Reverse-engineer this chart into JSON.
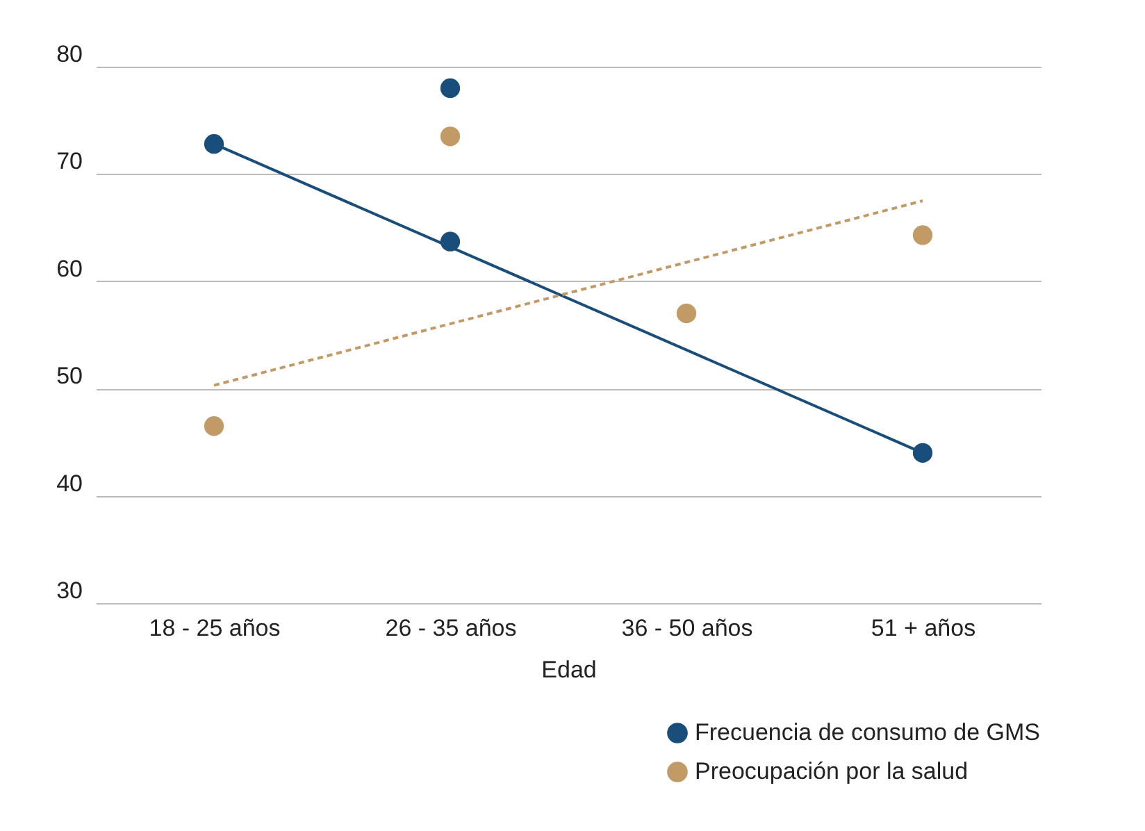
{
  "chart_data": {
    "type": "scatter",
    "xlabel": "Edad",
    "categories": [
      "18 - 25 años",
      "26 - 35 años",
      "36 - 50 años",
      "51 + años"
    ],
    "series": [
      {
        "name": "Frecuencia de consumo de GMS",
        "color": "#1a4e7a",
        "x": [
          "18 - 25 años",
          "26 - 35 años",
          "26 - 35 años",
          "51 + años"
        ],
        "values": [
          72.8,
          78,
          63.7,
          44
        ]
      },
      {
        "name": "Preocupación por la salud",
        "color": "#c19a66",
        "x": [
          "18 - 25 años",
          "26 - 35 años",
          "36 - 50 años",
          "51 + años"
        ],
        "values": [
          46.5,
          73.5,
          57,
          64.3
        ]
      },
      {
        "type": "line",
        "color": "#1a4e7a",
        "line_style": "solid",
        "marker": "none",
        "x": [
          "18 - 25 años",
          "51 + años"
        ],
        "values": [
          72.8,
          44
        ]
      },
      {
        "type": "line",
        "color": "#c19a66",
        "line_style": "dashed",
        "marker": "none",
        "x": [
          "18 - 25 años",
          "51 + años"
        ],
        "values": [
          50.3,
          67.5
        ]
      }
    ],
    "ylim": [
      30,
      80
    ],
    "yticks": [
      30,
      40,
      50,
      60,
      70,
      80
    ],
    "grid": "y",
    "legend": "bottom right",
    "marker": "circle"
  }
}
